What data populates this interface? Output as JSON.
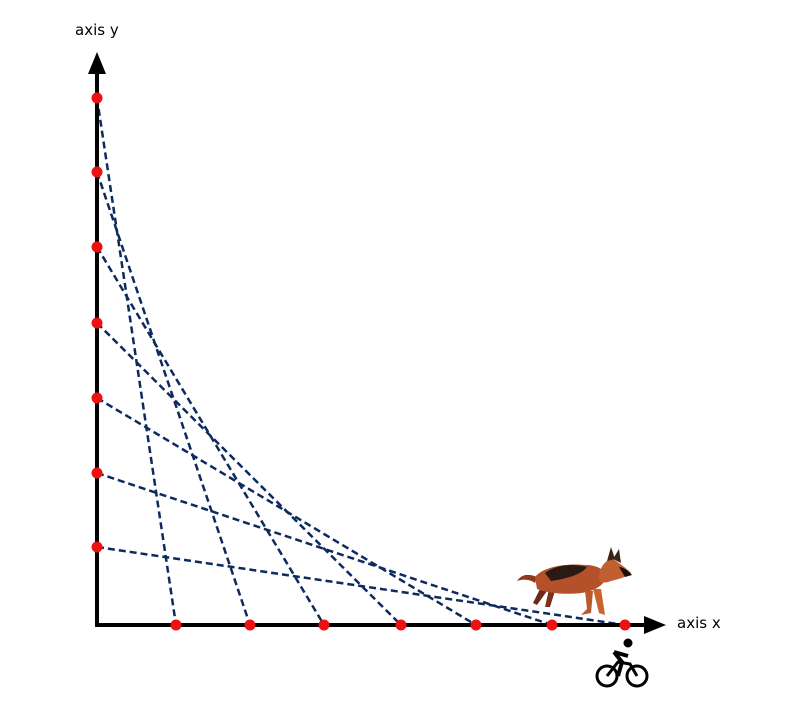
{
  "labels": {
    "y_axis": "axis y",
    "x_axis": "axis x"
  },
  "diagram": {
    "lines_per_set": 7,
    "line_color": "#0d2a5e",
    "point_color": "#ee1111",
    "axis_color": "#000000",
    "icons": [
      "dog-icon",
      "cyclist-icon"
    ]
  }
}
